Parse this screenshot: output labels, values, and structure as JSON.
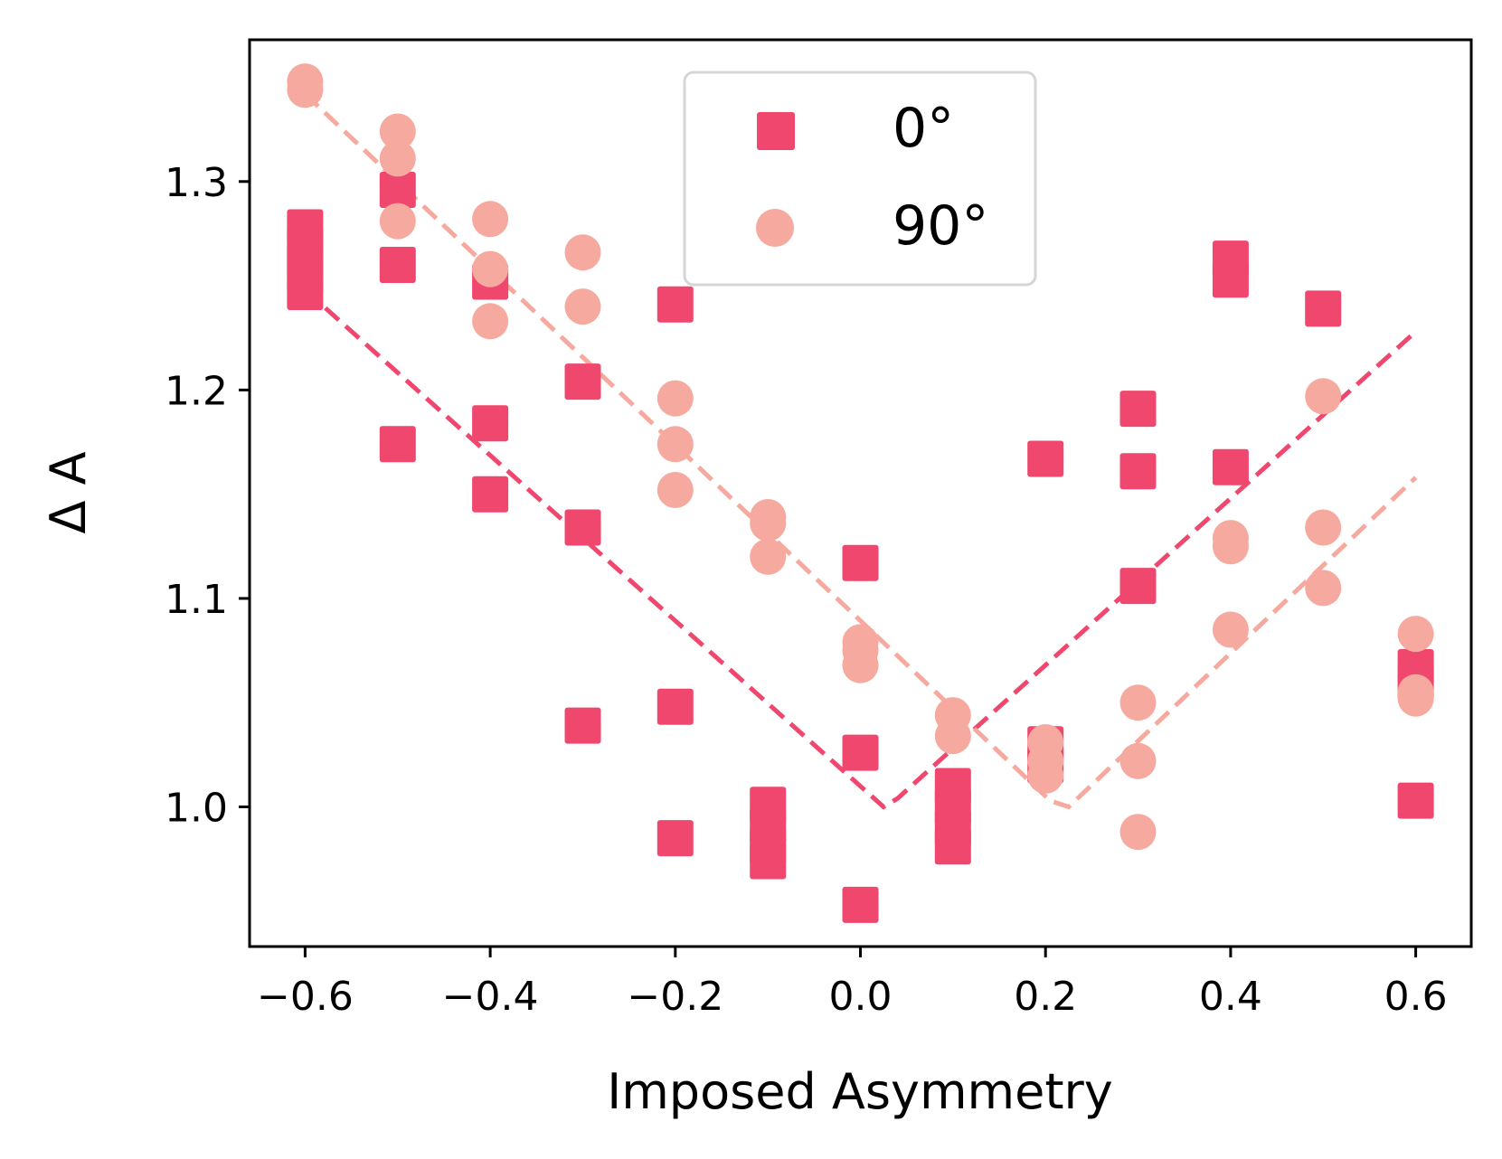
{
  "chart_data": {
    "type": "scatter",
    "title": "",
    "xlabel": "Imposed Asymmetry",
    "ylabel": "Δ A",
    "xlim": [
      -0.66,
      0.66
    ],
    "ylim": [
      0.933,
      1.368
    ],
    "xticks": [
      -0.6,
      -0.4,
      -0.2,
      0.0,
      0.2,
      0.4,
      0.6
    ],
    "xtick_labels": [
      "−0.6",
      "−0.4",
      "−0.2",
      "0.0",
      "0.2",
      "0.4",
      "0.6"
    ],
    "yticks": [
      1.0,
      1.1,
      1.2,
      1.3
    ],
    "ytick_labels": [
      "1.0",
      "1.1",
      "1.2",
      "1.3"
    ],
    "grid": false,
    "legend_position": "top-center",
    "series": [
      {
        "name": "0°",
        "marker": "square",
        "color": "#f0476f",
        "points": [
          [
            -0.6,
            1.278
          ],
          [
            -0.6,
            1.27
          ],
          [
            -0.6,
            1.262
          ],
          [
            -0.6,
            1.255
          ],
          [
            -0.6,
            1.247
          ],
          [
            -0.5,
            1.296
          ],
          [
            -0.5,
            1.26
          ],
          [
            -0.5,
            1.174
          ],
          [
            -0.4,
            1.252
          ],
          [
            -0.4,
            1.184
          ],
          [
            -0.4,
            1.15
          ],
          [
            -0.3,
            1.204
          ],
          [
            -0.3,
            1.134
          ],
          [
            -0.3,
            1.039
          ],
          [
            -0.2,
            1.241
          ],
          [
            -0.2,
            1.048
          ],
          [
            -0.2,
            0.985
          ],
          [
            -0.1,
            1.001
          ],
          [
            -0.1,
            0.991
          ],
          [
            -0.1,
            0.981
          ],
          [
            -0.1,
            0.974
          ],
          [
            0.0,
            1.117
          ],
          [
            0.0,
            1.026
          ],
          [
            0.0,
            0.953
          ],
          [
            0.1,
            1.01
          ],
          [
            0.1,
            1.0
          ],
          [
            0.1,
            0.99
          ],
          [
            0.1,
            0.981
          ],
          [
            0.2,
            1.167
          ],
          [
            0.2,
            1.03
          ],
          [
            0.2,
            1.02
          ],
          [
            0.3,
            1.191
          ],
          [
            0.3,
            1.161
          ],
          [
            0.3,
            1.106
          ],
          [
            0.4,
            1.263
          ],
          [
            0.4,
            1.253
          ],
          [
            0.4,
            1.163
          ],
          [
            0.5,
            1.239
          ],
          [
            0.6,
            1.067
          ],
          [
            0.6,
            1.06
          ],
          [
            0.6,
            1.003
          ]
        ]
      },
      {
        "name": "90°",
        "marker": "circle",
        "color": "#f6a99e",
        "points": [
          [
            -0.6,
            1.348
          ],
          [
            -0.6,
            1.344
          ],
          [
            -0.5,
            1.324
          ],
          [
            -0.5,
            1.311
          ],
          [
            -0.5,
            1.281
          ],
          [
            -0.4,
            1.282
          ],
          [
            -0.4,
            1.258
          ],
          [
            -0.4,
            1.233
          ],
          [
            -0.3,
            1.266
          ],
          [
            -0.3,
            1.24
          ],
          [
            -0.2,
            1.196
          ],
          [
            -0.2,
            1.174
          ],
          [
            -0.2,
            1.152
          ],
          [
            -0.1,
            1.139
          ],
          [
            -0.1,
            1.136
          ],
          [
            -0.1,
            1.12
          ],
          [
            0.0,
            1.079
          ],
          [
            0.0,
            1.075
          ],
          [
            0.0,
            1.068
          ],
          [
            0.1,
            1.044
          ],
          [
            0.1,
            1.034
          ],
          [
            0.2,
            1.031
          ],
          [
            0.2,
            1.022
          ],
          [
            0.2,
            1.015
          ],
          [
            0.3,
            1.05
          ],
          [
            0.3,
            1.022
          ],
          [
            0.3,
            0.988
          ],
          [
            0.4,
            1.129
          ],
          [
            0.4,
            1.125
          ],
          [
            0.4,
            1.085
          ],
          [
            0.5,
            1.197
          ],
          [
            0.5,
            1.134
          ],
          [
            0.5,
            1.105
          ],
          [
            0.6,
            1.083
          ],
          [
            0.6,
            1.055
          ],
          [
            0.6,
            1.052
          ]
        ]
      }
    ],
    "fit_lines": [
      {
        "series": "0°",
        "style": "dashed",
        "color": "#f0476f",
        "points": [
          [
            -0.6,
            1.248
          ],
          [
            0.025,
            1.0
          ],
          [
            0.04,
            1.004
          ],
          [
            0.6,
            1.228
          ]
        ]
      },
      {
        "series": "90°",
        "style": "dashed",
        "color": "#f6a99e",
        "points": [
          [
            -0.6,
            1.342
          ],
          [
            0.205,
            1.003
          ],
          [
            0.225,
            1.0
          ],
          [
            0.6,
            1.158
          ]
        ]
      }
    ]
  }
}
